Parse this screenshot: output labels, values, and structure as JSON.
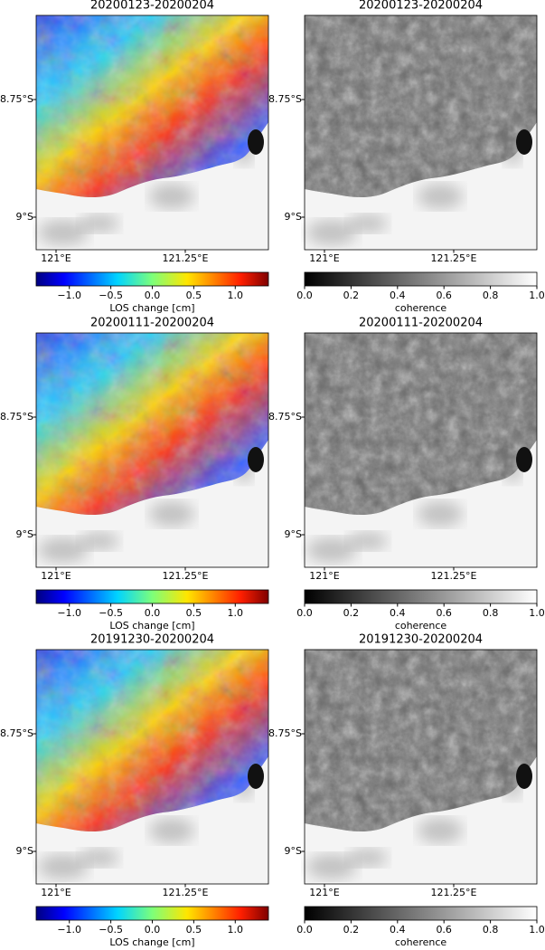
{
  "panels": [
    {
      "title": "20200123-20200204",
      "xticks": [
        "121°E",
        "121.25°E"
      ],
      "yticks": [
        "8.75°S",
        "9°S"
      ],
      "colormap": "jet",
      "colorbar": {
        "label": "LOS change [cm]",
        "lim": [
          -1.4,
          1.4
        ],
        "ticks": [
          {
            "value": -1,
            "label": "−1.0"
          },
          {
            "value": -0.5,
            "label": "−0.5"
          },
          {
            "value": 0,
            "label": "0.0"
          },
          0.5,
          {
            "value": 1,
            "label": "1.0"
          }
        ]
      }
    },
    {
      "title": "20200123-20200204",
      "xticks": [
        "121°E",
        "121.25°E"
      ],
      "yticks": [
        "8.75°S",
        "9°S"
      ],
      "colormap": "gray",
      "colorbar": {
        "label": "coherence",
        "lim": [
          0,
          1
        ],
        "ticks": [
          {
            "value": 0,
            "label": "0.0"
          },
          0.2,
          0.4,
          0.6,
          0.8,
          {
            "value": 1,
            "label": "1.0"
          }
        ]
      }
    },
    {
      "title": "20200111-20200204",
      "xticks": [
        "121°E",
        "121.25°E"
      ],
      "yticks": [
        "8.75°S",
        "9°S"
      ],
      "colormap": "jet",
      "colorbar": {
        "label": "LOS change [cm]",
        "lim": [
          -1.4,
          1.4
        ],
        "ticks": [
          {
            "value": -1,
            "label": "−1.0"
          },
          {
            "value": -0.5,
            "label": "−0.5"
          },
          {
            "value": 0,
            "label": "0.0"
          },
          0.5,
          {
            "value": 1,
            "label": "1.0"
          }
        ]
      }
    },
    {
      "title": "20200111-20200204",
      "xticks": [
        "121°E",
        "121.25°E"
      ],
      "yticks": [
        "8.75°S",
        "9°S"
      ],
      "colormap": "gray",
      "colorbar": {
        "label": "coherence",
        "lim": [
          0,
          1
        ],
        "ticks": [
          {
            "value": 0,
            "label": "0.0"
          },
          0.2,
          0.4,
          0.6,
          0.8,
          {
            "value": 1,
            "label": "1.0"
          }
        ]
      }
    },
    {
      "title": "20191230-20200204",
      "xticks": [
        "121°E",
        "121.25°E"
      ],
      "yticks": [
        "8.75°S",
        "9°S"
      ],
      "colormap": "jet",
      "colorbar": {
        "label": "LOS change [cm]",
        "lim": [
          -1.4,
          1.4
        ],
        "ticks": [
          {
            "value": -1,
            "label": "−1.0"
          },
          {
            "value": -0.5,
            "label": "−0.5"
          },
          {
            "value": 0,
            "label": "0.0"
          },
          0.5,
          {
            "value": 1,
            "label": "1.0"
          }
        ]
      }
    },
    {
      "title": "20191230-20200204",
      "xticks": [
        "121°E",
        "121.25°E"
      ],
      "yticks": [
        "8.75°S",
        "9°S"
      ],
      "colormap": "gray",
      "colorbar": {
        "label": "coherence",
        "lim": [
          0,
          1
        ],
        "ticks": [
          {
            "value": 0,
            "label": "0.0"
          },
          0.2,
          0.4,
          0.6,
          0.8,
          {
            "value": 1,
            "label": "1.0"
          }
        ]
      }
    }
  ]
}
